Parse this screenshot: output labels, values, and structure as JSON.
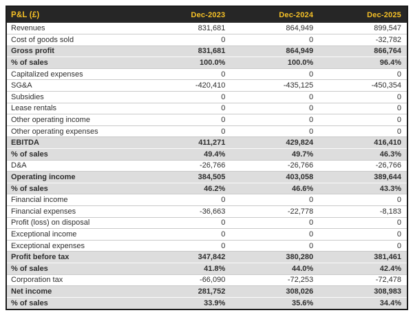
{
  "header": {
    "title": "P&L (£)",
    "columns": [
      "Dec-2023",
      "Dec-2024",
      "Dec-2025"
    ]
  },
  "colors": {
    "header_bg": "#262626",
    "header_text": "#F5C026",
    "band_bg": "#DDDDDD",
    "body_text": "#2D2D2D",
    "border": "#1A1A1A"
  },
  "chart_data": {
    "type": "table",
    "title": "P&L (£)",
    "columns": [
      "Dec-2023",
      "Dec-2024",
      "Dec-2025"
    ],
    "rows": [
      {
        "label": "Revenues",
        "values": [
          "831,681",
          "864,949",
          "899,547"
        ],
        "emphasis": false
      },
      {
        "label": "Cost of goods sold",
        "values": [
          "0",
          "0",
          "-32,782"
        ],
        "emphasis": false
      },
      {
        "label": "Gross profit",
        "values": [
          "831,681",
          "864,949",
          "866,764"
        ],
        "emphasis": true
      },
      {
        "label": "% of sales",
        "values": [
          "100.0%",
          "100.0%",
          "96.4%"
        ],
        "emphasis": true
      },
      {
        "label": "Capitalized expenses",
        "values": [
          "0",
          "0",
          "0"
        ],
        "emphasis": false
      },
      {
        "label": "SG&A",
        "values": [
          "-420,410",
          "-435,125",
          "-450,354"
        ],
        "emphasis": false
      },
      {
        "label": "Subsidies",
        "values": [
          "0",
          "0",
          "0"
        ],
        "emphasis": false
      },
      {
        "label": "Lease rentals",
        "values": [
          "0",
          "0",
          "0"
        ],
        "emphasis": false
      },
      {
        "label": "Other operating income",
        "values": [
          "0",
          "0",
          "0"
        ],
        "emphasis": false
      },
      {
        "label": "Other operating expenses",
        "values": [
          "0",
          "0",
          "0"
        ],
        "emphasis": false
      },
      {
        "label": "EBITDA",
        "values": [
          "411,271",
          "429,824",
          "416,410"
        ],
        "emphasis": true
      },
      {
        "label": "% of sales",
        "values": [
          "49.4%",
          "49.7%",
          "46.3%"
        ],
        "emphasis": true
      },
      {
        "label": "D&A",
        "values": [
          "-26,766",
          "-26,766",
          "-26,766"
        ],
        "emphasis": false
      },
      {
        "label": "Operating income",
        "values": [
          "384,505",
          "403,058",
          "389,644"
        ],
        "emphasis": true
      },
      {
        "label": "% of sales",
        "values": [
          "46.2%",
          "46.6%",
          "43.3%"
        ],
        "emphasis": true
      },
      {
        "label": "Financial income",
        "values": [
          "0",
          "0",
          "0"
        ],
        "emphasis": false
      },
      {
        "label": "Financial expenses",
        "values": [
          "-36,663",
          "-22,778",
          "-8,183"
        ],
        "emphasis": false
      },
      {
        "label": "Profit (loss) on disposal",
        "values": [
          "0",
          "0",
          "0"
        ],
        "emphasis": false
      },
      {
        "label": "Exceptional income",
        "values": [
          "0",
          "0",
          "0"
        ],
        "emphasis": false
      },
      {
        "label": "Exceptional expenses",
        "values": [
          "0",
          "0",
          "0"
        ],
        "emphasis": false
      },
      {
        "label": "Profit before tax",
        "values": [
          "347,842",
          "380,280",
          "381,461"
        ],
        "emphasis": true
      },
      {
        "label": "% of sales",
        "values": [
          "41.8%",
          "44.0%",
          "42.4%"
        ],
        "emphasis": true
      },
      {
        "label": "Corporation tax",
        "values": [
          "-66,090",
          "-72,253",
          "-72,478"
        ],
        "emphasis": false
      },
      {
        "label": "Net income",
        "values": [
          "281,752",
          "308,026",
          "308,983"
        ],
        "emphasis": true
      },
      {
        "label": "% of sales",
        "values": [
          "33.9%",
          "35.6%",
          "34.4%"
        ],
        "emphasis": true
      }
    ]
  }
}
